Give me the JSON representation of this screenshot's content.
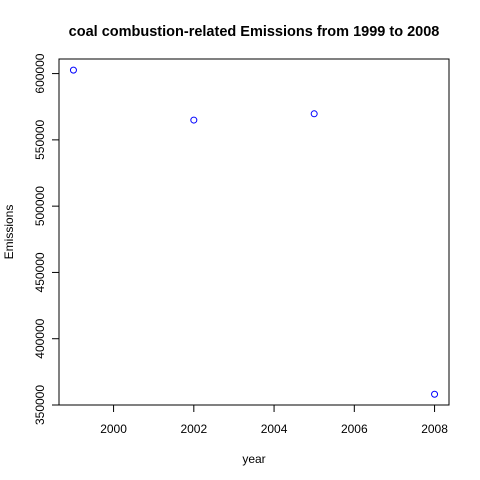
{
  "chart_data": {
    "type": "scatter",
    "title": "coal combustion-related Emissions from 1999 to 2008",
    "xlabel": "year",
    "ylabel": "Emissions",
    "x": [
      1999,
      2002,
      2005,
      2008
    ],
    "y": [
      602624,
      564936,
      569655,
      358084
    ],
    "xlim": [
      1998.64,
      2008.36
    ],
    "ylim": [
      350000,
      611000
    ],
    "xticks": [
      2000,
      2002,
      2004,
      2006,
      2008
    ],
    "yticks": [
      350000,
      400000,
      450000,
      500000,
      550000,
      600000
    ],
    "xtick_labels": [
      "2000",
      "2002",
      "2004",
      "2006",
      "2008"
    ],
    "ytick_labels": [
      "350000",
      "400000",
      "450000",
      "500000",
      "550000",
      "600000"
    ],
    "point_color": "#0000ff",
    "grid": false,
    "legend": "none"
  }
}
